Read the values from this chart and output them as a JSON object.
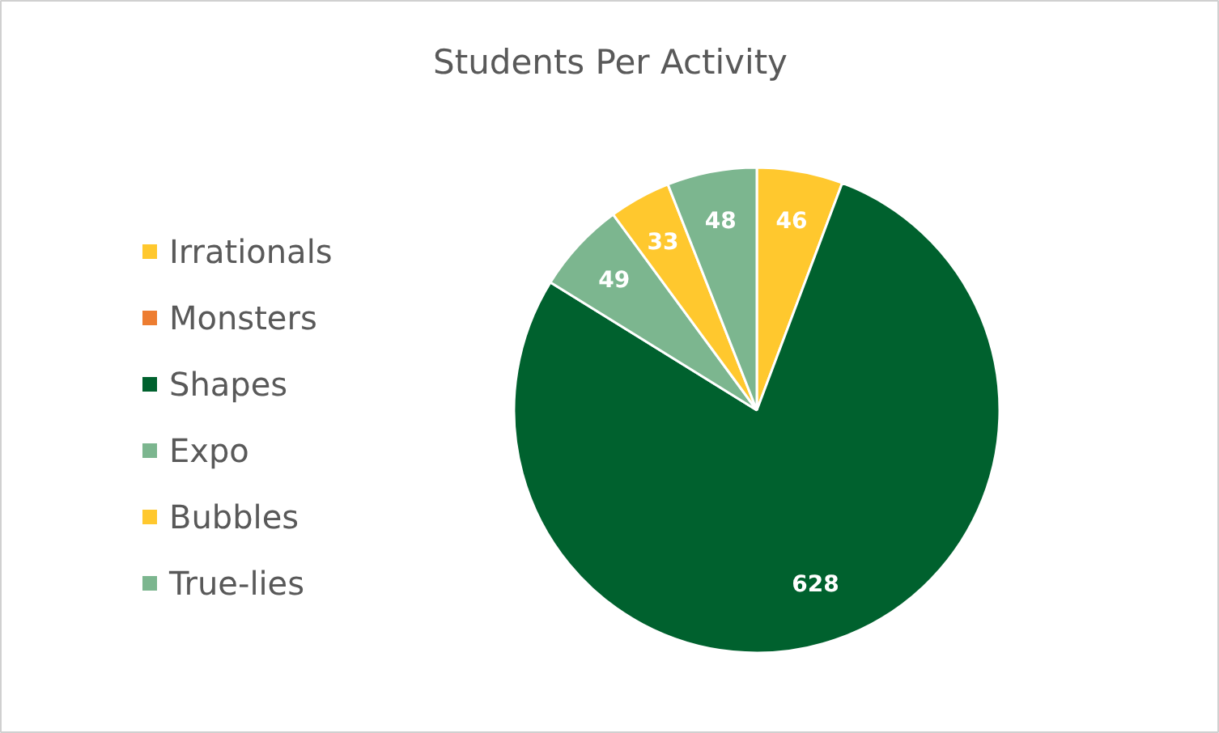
{
  "chart_data": {
    "type": "pie",
    "title": "Students Per Activity",
    "categories": [
      "Irrationals",
      "Monsters",
      "Shapes",
      "Expo",
      "Bubbles",
      "True-lies"
    ],
    "values": [
      46,
      0,
      628,
      49,
      33,
      48
    ],
    "colors": [
      "#ffc82e",
      "#ed7d31",
      "#00612e",
      "#7cb68f",
      "#ffc82e",
      "#7cb68f"
    ],
    "value_labels": [
      "46",
      null,
      "628",
      "49",
      "33",
      "48"
    ],
    "legend": "left"
  }
}
